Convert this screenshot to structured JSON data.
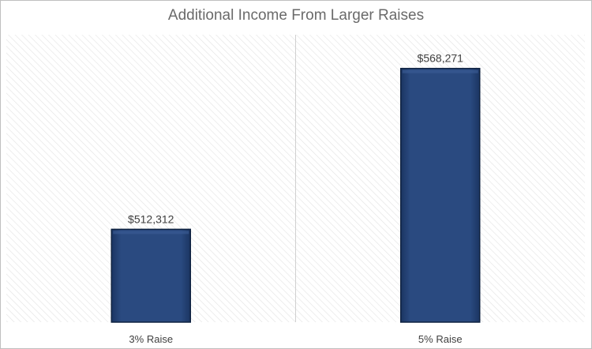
{
  "chart_data": {
    "type": "bar",
    "title": "Additional Income From Larger Raises",
    "categories": [
      "3% Raise",
      "5% Raise"
    ],
    "values": [
      512312,
      568271
    ],
    "data_labels": [
      "$512,312",
      "$568,271"
    ],
    "xlabel": "",
    "ylabel": "",
    "ylim": [
      480000,
      580000
    ],
    "grid": false,
    "legend": "none",
    "colors": {
      "bar": "#243f6e",
      "bar_edge": "#0f2240",
      "plot_pattern": "#e3e3e3",
      "divider": "#d0d0d0"
    }
  }
}
